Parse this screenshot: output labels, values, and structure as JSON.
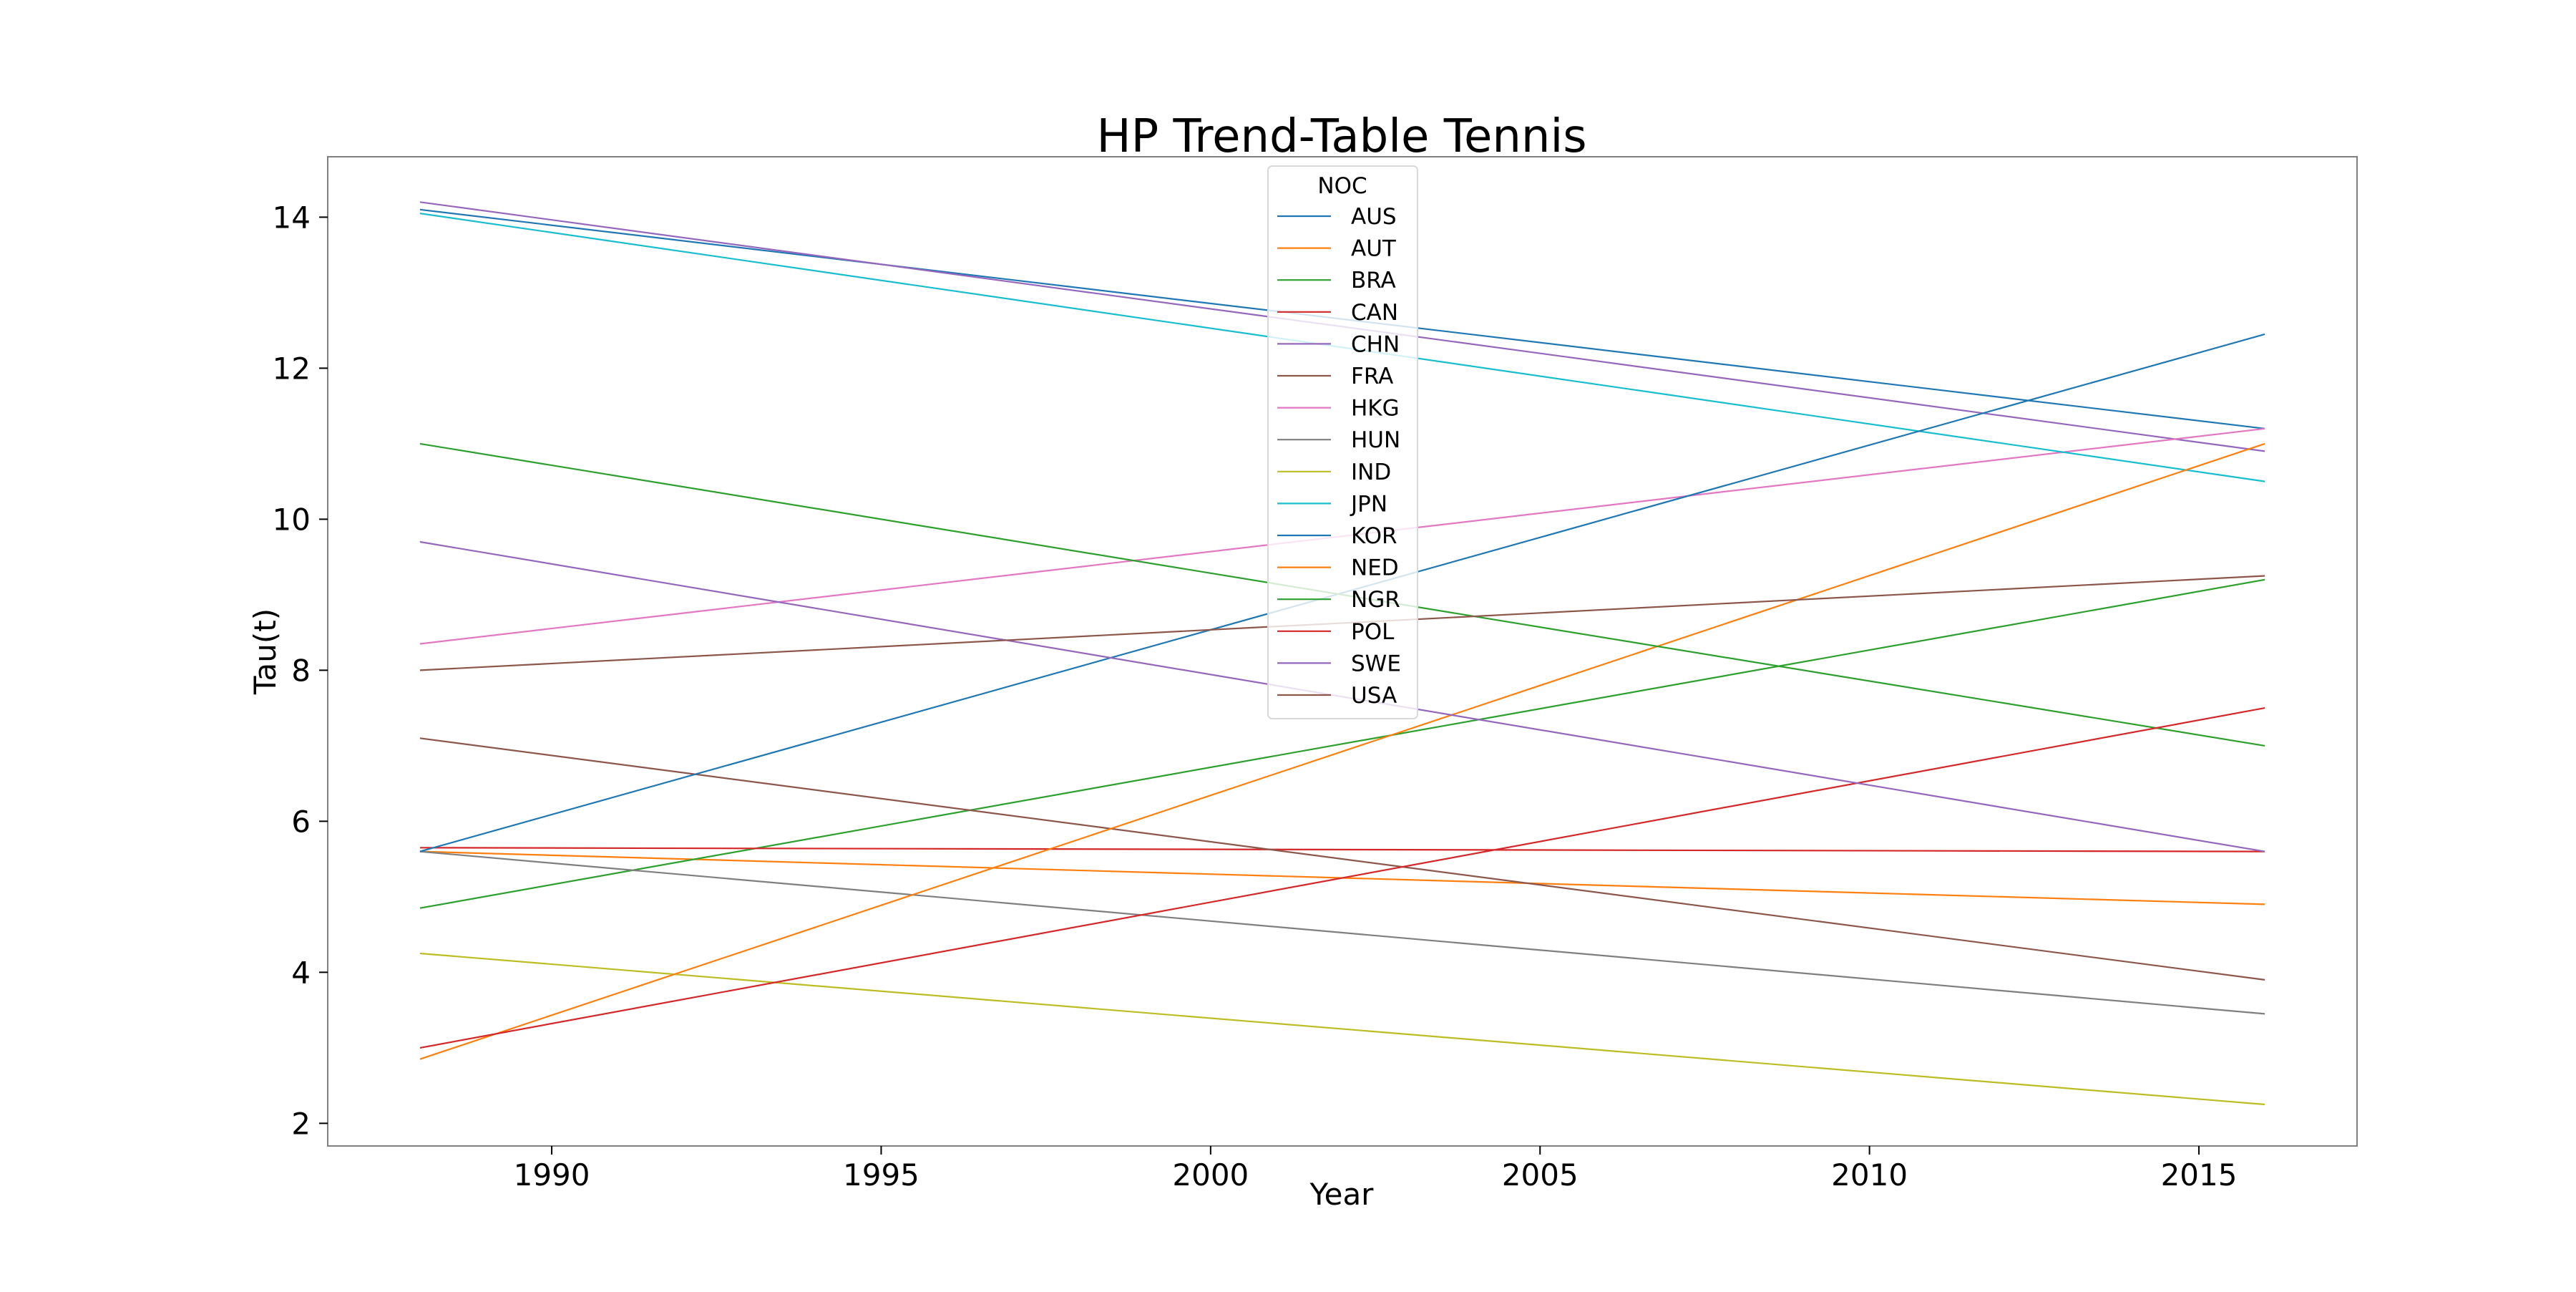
{
  "chart_data": {
    "type": "line",
    "title": "HP Trend-Table Tennis",
    "xlabel": "Year",
    "ylabel": "Tau(t)",
    "xlim": [
      1986.6,
      2017.4
    ],
    "ylim": [
      1.7,
      14.8
    ],
    "x_ticks": [
      1990,
      1995,
      2000,
      2005,
      2010,
      2015
    ],
    "y_ticks": [
      2,
      4,
      6,
      8,
      10,
      12,
      14
    ],
    "legend_title": "NOC",
    "legend_position": "top-center",
    "grid": false,
    "series": [
      {
        "name": "AUS",
        "color": "#1f77b4",
        "x": [
          1988,
          2016
        ],
        "y": [
          14.1,
          11.2
        ]
      },
      {
        "name": "AUT",
        "color": "#ff7f0e",
        "x": [
          1988,
          2016
        ],
        "y": [
          5.6,
          4.9
        ]
      },
      {
        "name": "BRA",
        "color": "#2ca02c",
        "x": [
          1988,
          2016
        ],
        "y": [
          4.85,
          9.2
        ]
      },
      {
        "name": "CAN",
        "color": "#d62728",
        "x": [
          1988,
          2016
        ],
        "y": [
          5.65,
          5.6
        ]
      },
      {
        "name": "CHN",
        "color": "#9467bd",
        "x": [
          1988,
          2016
        ],
        "y": [
          14.2,
          10.9
        ]
      },
      {
        "name": "FRA",
        "color": "#8c564b",
        "x": [
          1988,
          2016
        ],
        "y": [
          7.1,
          3.9
        ]
      },
      {
        "name": "HKG",
        "color": "#e377c2",
        "x": [
          1988,
          2016
        ],
        "y": [
          8.35,
          11.2
        ]
      },
      {
        "name": "HUN",
        "color": "#7f7f7f",
        "x": [
          1988,
          2016
        ],
        "y": [
          5.6,
          3.45
        ]
      },
      {
        "name": "IND",
        "color": "#bcbd22",
        "x": [
          1988,
          2016
        ],
        "y": [
          4.25,
          2.25
        ]
      },
      {
        "name": "JPN",
        "color": "#17becf",
        "x": [
          1988,
          2016
        ],
        "y": [
          14.05,
          10.5
        ]
      },
      {
        "name": "KOR",
        "color": "#1f77b4",
        "x": [
          1988,
          2016
        ],
        "y": [
          5.6,
          12.45
        ]
      },
      {
        "name": "NED",
        "color": "#ff7f0e",
        "x": [
          1988,
          2016
        ],
        "y": [
          2.85,
          11.0
        ]
      },
      {
        "name": "NGR",
        "color": "#2ca02c",
        "x": [
          1988,
          2016
        ],
        "y": [
          11.0,
          7.0
        ]
      },
      {
        "name": "POL",
        "color": "#d62728",
        "x": [
          1988,
          2016
        ],
        "y": [
          3.0,
          7.5
        ]
      },
      {
        "name": "SWE",
        "color": "#9467bd",
        "x": [
          1988,
          2016
        ],
        "y": [
          9.7,
          5.6
        ]
      },
      {
        "name": "USA",
        "color": "#8c564b",
        "x": [
          1988,
          2016
        ],
        "y": [
          8.0,
          9.25
        ]
      }
    ]
  }
}
